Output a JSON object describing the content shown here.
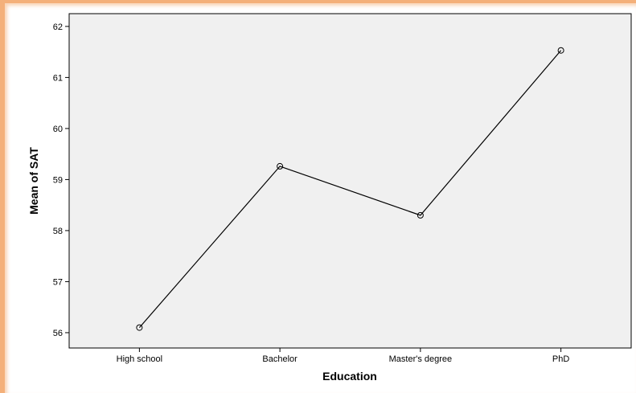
{
  "chart_data": {
    "type": "line",
    "categories": [
      "High school",
      "Bachelor",
      "Master's degree",
      "PhD"
    ],
    "values": [
      56.1,
      59.26,
      58.3,
      61.53
    ],
    "xlabel": "Education",
    "ylabel": "Mean of SAT",
    "ylim": [
      55.7,
      62.25
    ],
    "yticks": [
      56,
      57,
      58,
      59,
      60,
      61,
      62
    ],
    "grid": false,
    "marker": "open-circle",
    "colors": {
      "plot_background": "#f0f0f0",
      "line": "#000000",
      "frame_accent": "#f4b07a"
    }
  }
}
